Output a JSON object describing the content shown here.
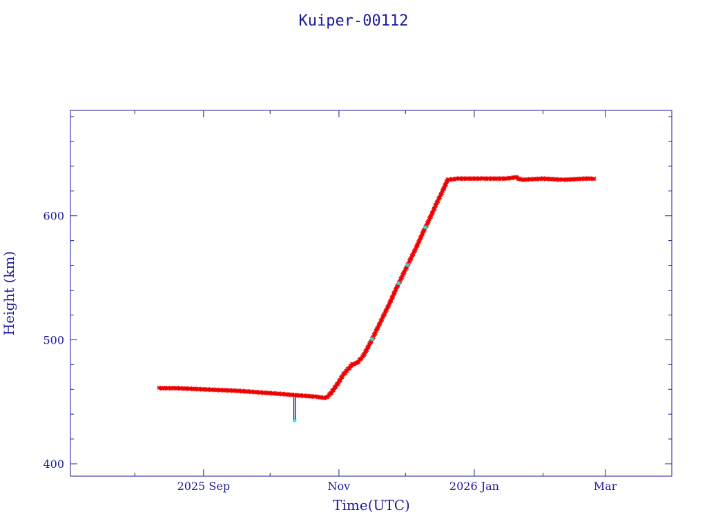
{
  "chart_data": {
    "type": "scatter",
    "title": "Kuiper-00112",
    "xlabel": "Time(UTC)",
    "ylabel": "Height (km)",
    "x_tick_labels": [
      "2025 Sep",
      "Nov",
      "2026 Jan",
      "Mar"
    ],
    "x_ticks": [
      "2025-09-01",
      "2025-11-01",
      "2026-01-01",
      "2026-03-01"
    ],
    "xlim": [
      "2025-07-03",
      "2026-03-31"
    ],
    "ylim": [
      390,
      685
    ],
    "y_ticks": [
      400,
      500,
      600
    ],
    "grid": false,
    "colors": {
      "axes": "#1a1a9a",
      "points": "#ee0000",
      "alt_points": "#33dddd",
      "line": "#00008b"
    },
    "series": [
      {
        "color": "#ee0000",
        "points": [
          [
            "2025-08-12",
            461
          ],
          [
            "2025-08-20",
            461
          ],
          [
            "2025-09-01",
            460
          ],
          [
            "2025-09-15",
            459
          ],
          [
            "2025-10-01",
            457
          ],
          [
            "2025-10-15",
            455
          ],
          [
            "2025-10-22",
            454
          ],
          [
            "2025-10-26",
            453
          ],
          [
            "2025-10-28",
            456
          ],
          [
            "2025-10-30",
            461
          ],
          [
            "2025-11-01",
            466
          ],
          [
            "2025-11-03",
            472
          ],
          [
            "2025-11-05",
            476
          ],
          [
            "2025-11-07",
            480
          ],
          [
            "2025-11-09",
            481
          ],
          [
            "2025-11-12",
            487
          ],
          [
            "2025-11-15",
            497
          ],
          [
            "2025-11-18",
            508
          ],
          [
            "2025-11-21",
            519
          ],
          [
            "2025-11-24",
            530
          ],
          [
            "2025-11-27",
            542
          ],
          [
            "2025-11-30",
            553
          ],
          [
            "2025-12-03",
            564
          ],
          [
            "2025-12-06",
            575
          ],
          [
            "2025-12-09",
            587
          ],
          [
            "2025-12-12",
            598
          ],
          [
            "2025-12-15",
            610
          ],
          [
            "2025-12-18",
            621
          ],
          [
            "2025-12-20",
            629
          ],
          [
            "2025-12-25",
            630
          ],
          [
            "2026-01-05",
            630
          ],
          [
            "2026-01-15",
            630
          ],
          [
            "2026-01-20",
            631
          ],
          [
            "2026-01-22",
            629
          ],
          [
            "2026-02-01",
            630
          ],
          [
            "2026-02-10",
            629
          ],
          [
            "2026-02-20",
            630
          ],
          [
            "2026-02-24",
            630
          ]
        ]
      },
      {
        "color": "#33dddd",
        "points": [
          [
            "2025-10-12",
            435
          ]
        ]
      }
    ]
  }
}
